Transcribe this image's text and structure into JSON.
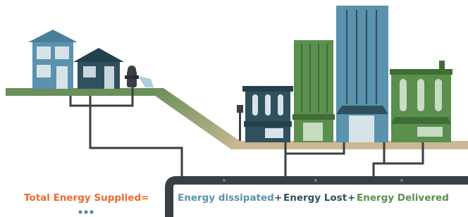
{
  "equation": {
    "total": "Total Energy Supplied",
    "equals": "=",
    "term1": "Energy dissipated",
    "plus1": "+",
    "term2": "Energy Lost",
    "plus2": "+",
    "term3": "Energy Delivered"
  }
}
